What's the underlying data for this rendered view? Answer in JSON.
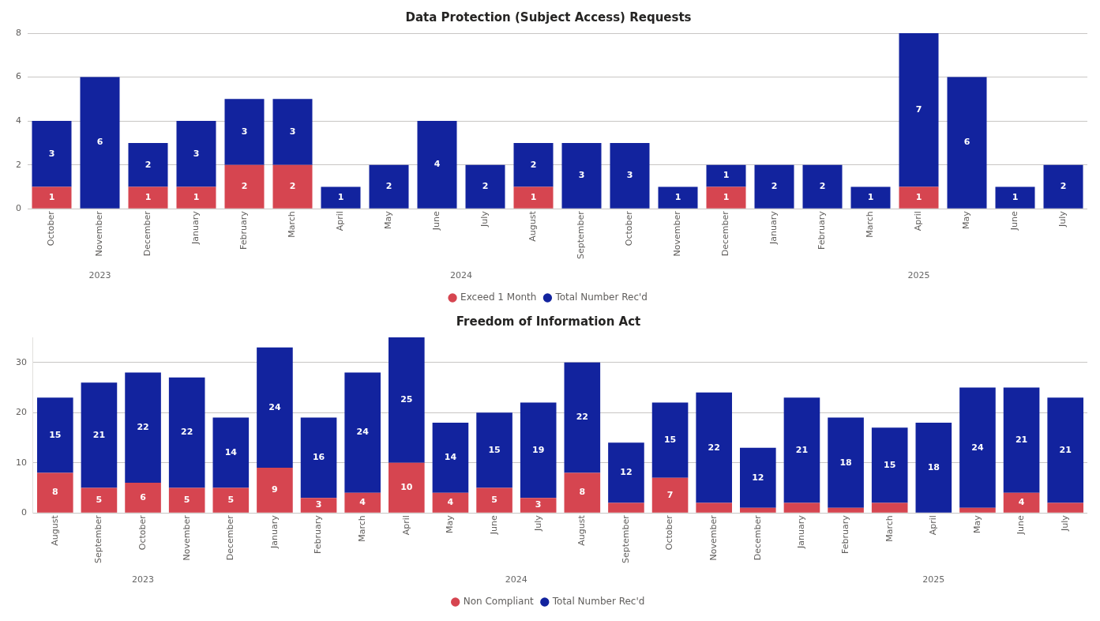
{
  "chart_data": [
    {
      "type": "bar",
      "title": "Data Protection (Subject Access) Requests",
      "stacked": true,
      "categories": [
        "October",
        "November",
        "December",
        "January",
        "February",
        "March",
        "April",
        "May",
        "June",
        "July",
        "August",
        "September",
        "October",
        "November",
        "December",
        "January",
        "February",
        "March",
        "April",
        "May",
        "June",
        "July"
      ],
      "series": [
        {
          "name": "Exceed 1 Month",
          "color": "#d64550",
          "values": [
            1,
            0,
            1,
            1,
            2,
            2,
            0,
            0,
            0,
            0,
            1,
            0,
            0,
            0,
            1,
            0,
            0,
            0,
            1,
            0,
            0,
            0
          ],
          "value_labels": [
            "1",
            null,
            "1",
            "1",
            "2",
            "2",
            null,
            null,
            null,
            null,
            "1",
            null,
            null,
            null,
            "1",
            null,
            null,
            null,
            "1",
            null,
            null,
            null
          ]
        },
        {
          "name": "Total Number Rec'd",
          "color": "#12239e",
          "values": [
            3,
            6,
            2,
            3,
            3,
            3,
            1,
            2,
            4,
            2,
            2,
            3,
            3,
            1,
            1,
            2,
            2,
            1,
            7,
            6,
            1,
            2
          ],
          "value_labels": [
            "3",
            "6",
            "2",
            "3",
            "3",
            "3",
            "1",
            "2",
            "4",
            "2",
            "2",
            "3",
            "3",
            "1",
            "1",
            "2",
            "2",
            "1",
            "7",
            "6",
            "1",
            "2"
          ]
        }
      ],
      "ylim": [
        0,
        8
      ],
      "yticks": [
        0,
        2,
        4,
        6,
        8
      ],
      "grid": "y",
      "legend": "bottom",
      "annotations": [
        "2023",
        "2024",
        "2025"
      ]
    },
    {
      "type": "bar",
      "title": "Freedom of Information Act",
      "stacked": true,
      "categories": [
        "August",
        "September",
        "October",
        "November",
        "December",
        "January",
        "February",
        "March",
        "April",
        "May",
        "June",
        "July",
        "August",
        "September",
        "October",
        "November",
        "December",
        "January",
        "February",
        "March",
        "April",
        "May",
        "June",
        "July"
      ],
      "series": [
        {
          "name": "Non Compliant",
          "color": "#d64550",
          "values": [
            8,
            5,
            6,
            5,
            5,
            9,
            3,
            4,
            10,
            4,
            5,
            3,
            8,
            2,
            7,
            2,
            1,
            2,
            1,
            2,
            0,
            1,
            4,
            2
          ],
          "value_labels": [
            "8",
            "5",
            "6",
            "5",
            "5",
            "9",
            "3",
            "4",
            "10",
            "4",
            "5",
            "3",
            "8",
            null,
            "7",
            null,
            null,
            null,
            null,
            null,
            null,
            null,
            "4",
            null
          ]
        },
        {
          "name": "Total Number Rec'd",
          "color": "#12239e",
          "values": [
            15,
            21,
            22,
            22,
            14,
            24,
            16,
            24,
            25,
            14,
            15,
            19,
            22,
            12,
            15,
            22,
            12,
            21,
            18,
            15,
            18,
            24,
            21,
            21
          ],
          "value_labels": [
            "15",
            "21",
            "22",
            "22",
            "14",
            "24",
            "16",
            "24",
            "25",
            "14",
            "15",
            "19",
            "22",
            "12",
            "15",
            "22",
            "12",
            "21",
            "18",
            "15",
            "18",
            "24",
            "21",
            "21"
          ]
        }
      ],
      "ylim": [
        0,
        35
      ],
      "yticks": [
        0,
        10,
        20,
        30
      ],
      "grid": "y",
      "legend": "bottom",
      "annotations": [
        "2023",
        "2024",
        "2025"
      ]
    }
  ]
}
